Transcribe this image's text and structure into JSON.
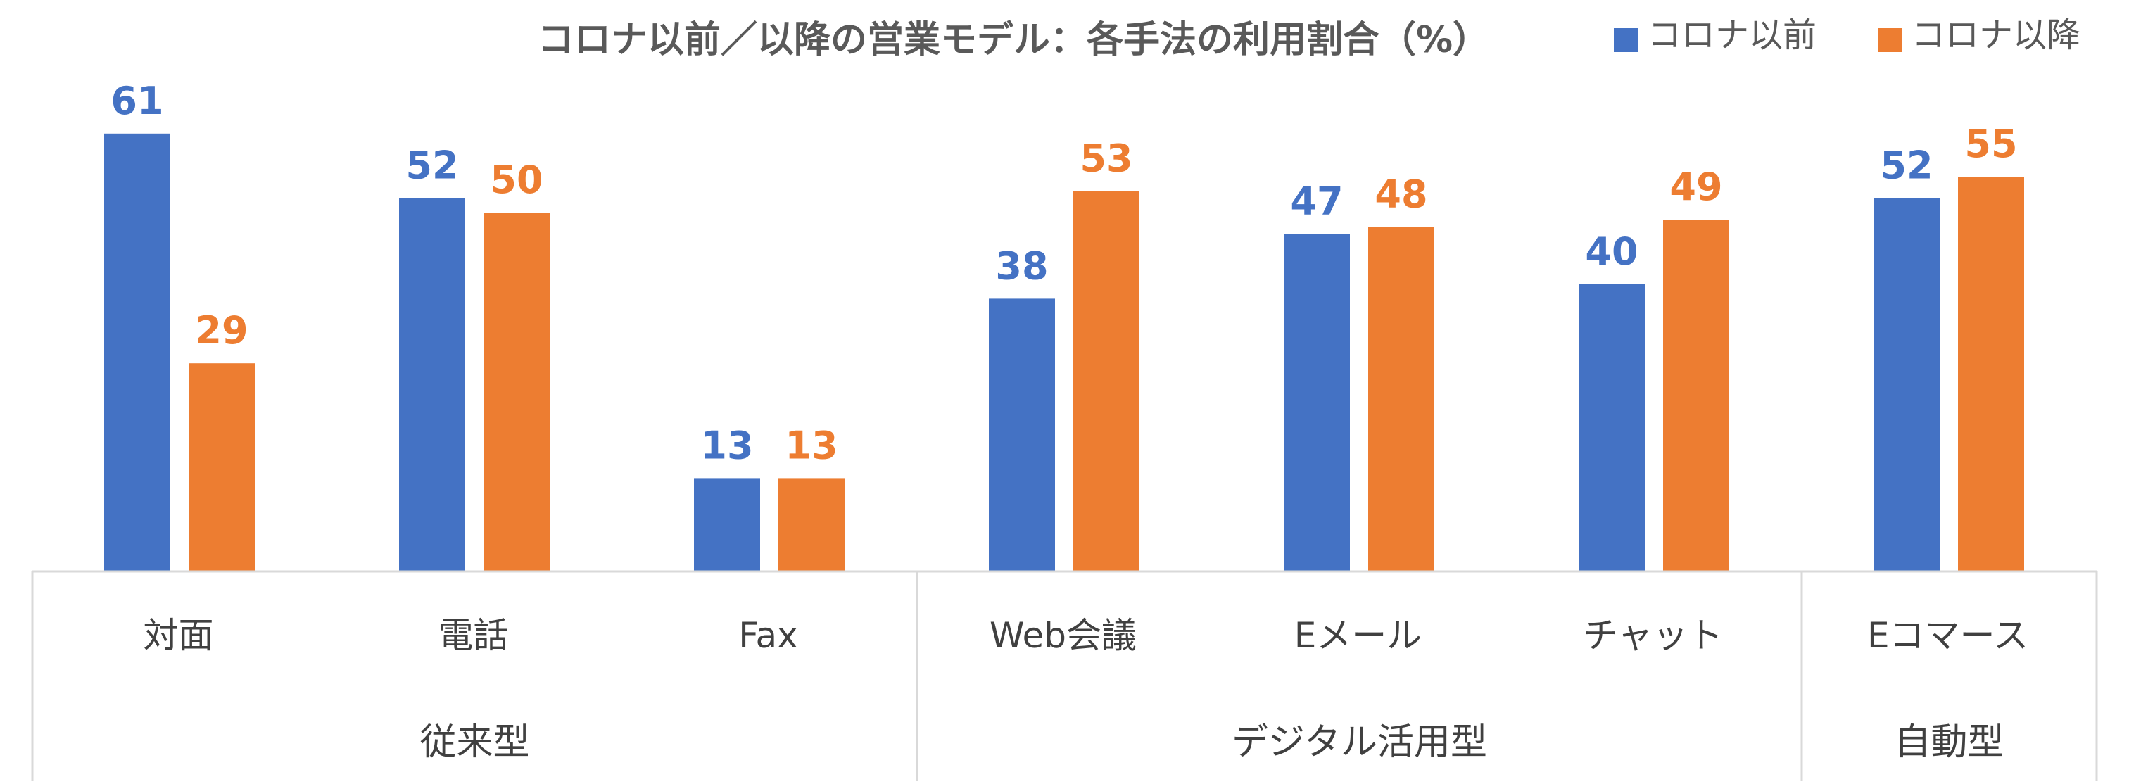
{
  "chart_data": {
    "type": "bar",
    "title": "コロナ以前／以降の営業モデル：各手法の利用割合（%）",
    "categories": [
      "対面",
      "電話",
      "Fax",
      "Web会議",
      "Eメール",
      "チャット",
      "Eコマース"
    ],
    "groups": [
      {
        "label": "従来型",
        "categories": [
          "対面",
          "電話",
          "Fax"
        ]
      },
      {
        "label": "デジタル活用型",
        "categories": [
          "Web会議",
          "Eメール",
          "チャット"
        ]
      },
      {
        "label": "自動型",
        "categories": [
          "Eコマース"
        ]
      }
    ],
    "series": [
      {
        "name": "コロナ以前",
        "color": "#4472C4",
        "values": [
          61,
          52,
          13,
          38,
          47,
          40,
          52
        ]
      },
      {
        "name": "コロナ以降",
        "color": "#ED7D31",
        "values": [
          29,
          50,
          13,
          53,
          48,
          49,
          55
        ]
      }
    ],
    "ylim": [
      0,
      70
    ],
    "legend": "top-right",
    "grid": false,
    "data_labels": true
  }
}
